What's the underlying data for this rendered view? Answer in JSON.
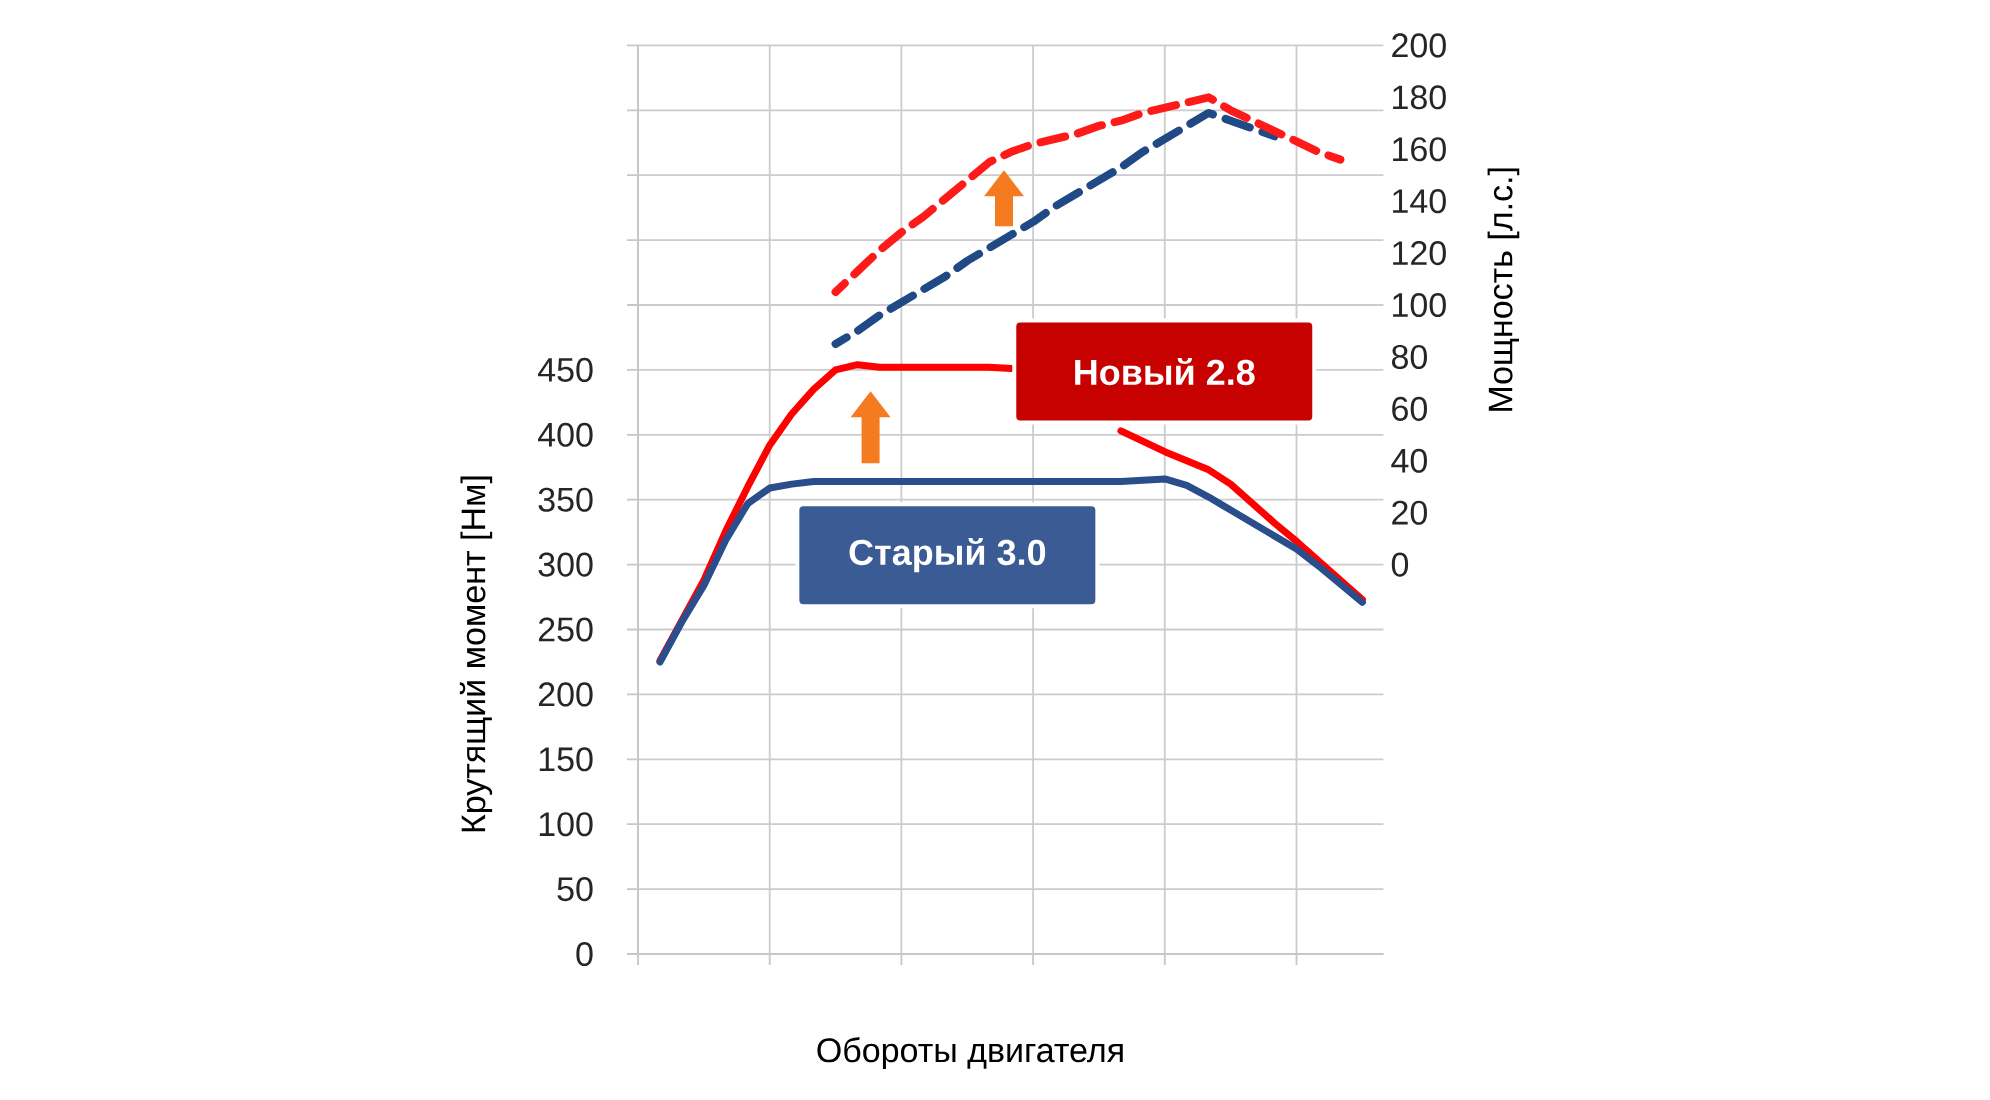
{
  "chart_data": {
    "type": "line",
    "xlabel": "Обороты двигателя",
    "ylabel": "Крутящий момент [Нм]",
    "y2label": "Мощность [л.с.]",
    "categories": [
      null,
      null,
      null,
      null,
      null,
      null,
      null,
      null,
      null,
      null,
      null,
      null,
      null,
      null,
      null,
      null,
      null,
      null,
      null,
      null,
      null,
      null,
      null,
      null,
      null,
      null,
      null,
      null,
      null,
      null,
      null,
      null,
      null
    ],
    "ylim": [
      0,
      700
    ],
    "yticks": [
      0,
      50,
      100,
      150,
      200,
      250,
      300,
      350,
      400,
      450,
      {
        "value": 500,
        "label": null
      },
      {
        "value": 550,
        "label": null
      },
      {
        "value": 600,
        "label": null
      },
      {
        "value": 650,
        "label": null
      },
      {
        "value": 700,
        "label": null
      }
    ],
    "y2lim": [
      -150,
      200
    ],
    "y2ticks": [
      0,
      20,
      40,
      60,
      80,
      100,
      120,
      140,
      160,
      180,
      200
    ],
    "grid": true,
    "series": [
      {
        "name": "Новый 2.8",
        "color": "#ff0000",
        "line_style": "solid",
        "values": [
          226,
          257,
          288,
          326,
          360,
          392,
          416,
          435,
          450,
          454,
          452,
          452,
          452,
          452,
          452,
          452,
          451,
          null,
          null,
          null,
          null,
          403,
          395,
          387,
          380,
          373,
          362,
          347,
          332,
          318,
          303,
          288,
          273
        ]
      },
      {
        "name": "Старый 3.0",
        "color": "#2a4d8c",
        "line_style": "solid",
        "values": [
          225,
          256,
          284,
          319,
          347,
          359,
          362,
          364,
          364,
          364,
          364,
          364,
          364,
          364,
          364,
          364,
          364,
          364,
          364,
          364,
          364,
          364,
          365,
          366,
          361,
          352,
          342,
          332,
          322,
          312,
          299,
          285,
          271
        ]
      },
      {
        "color": "#1f4a85",
        "line_style": "dashed",
        "axis": "y2",
        "values": [
          null,
          null,
          null,
          null,
          null,
          null,
          null,
          null,
          85,
          90,
          96,
          101,
          106,
          111,
          117,
          122,
          127,
          132,
          138,
          143,
          148,
          153,
          159,
          164,
          169,
          174,
          171,
          168,
          165,
          null,
          null,
          null,
          null
        ]
      },
      {
        "color": "#ff1a1a",
        "line_style": "dashed",
        "axis": "y2",
        "values": [
          null,
          null,
          null,
          null,
          null,
          null,
          null,
          null,
          105,
          113,
          121,
          128,
          134,
          141,
          148,
          155,
          159,
          162,
          164,
          166,
          169,
          171,
          174,
          176,
          178,
          180,
          175,
          171,
          167,
          163,
          159,
          156,
          null
        ]
      }
    ]
  }
}
